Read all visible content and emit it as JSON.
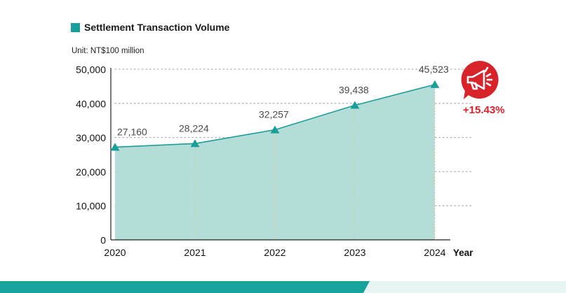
{
  "chart_data": {
    "type": "area",
    "title": "Settlement Transaction Volume",
    "unit": "Unit: NT$100 million",
    "xlabel": "Year",
    "ylabel": "",
    "categories": [
      "2020",
      "2021",
      "2022",
      "2023",
      "2024"
    ],
    "values": [
      27160,
      28224,
      32257,
      39438,
      45523
    ],
    "data_labels": [
      "27,160",
      "28,224",
      "32,257",
      "39,438",
      "45,523"
    ],
    "ylim": [
      0,
      50000
    ],
    "yticks": [
      0,
      10000,
      20000,
      30000,
      40000,
      50000
    ],
    "ytick_labels": [
      "0",
      "10,000",
      "20,000",
      "30,000",
      "40,000",
      "50,000"
    ],
    "grid": "horizontal-dotted",
    "change_label": "+15.43%"
  },
  "colors": {
    "accent": "#1a9e9a",
    "area_fill": "#b5ddd7",
    "grid": "#b0b0b0",
    "drop_line": "#d9c98e",
    "highlight": "#d9232b",
    "footer_dark": "#17a29c",
    "footer_light": "#e6f4f3"
  },
  "icons": {
    "legend_marker": "square-icon",
    "badge": "megaphone-icon"
  }
}
